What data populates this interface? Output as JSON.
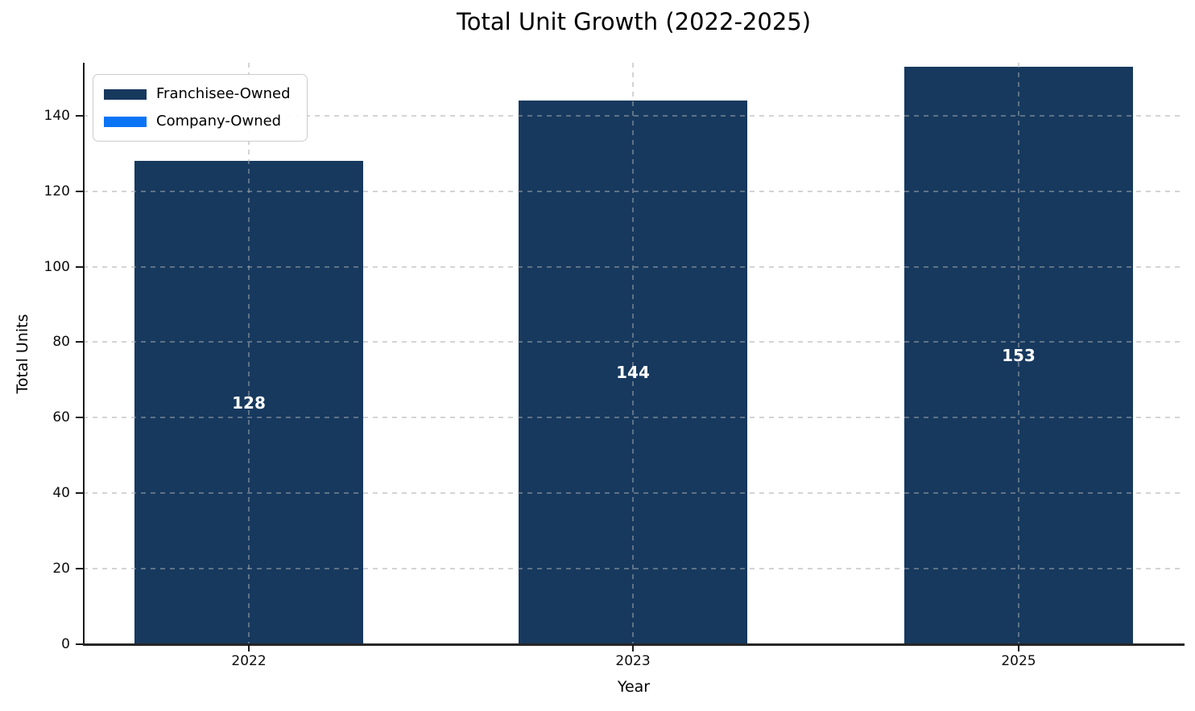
{
  "chart_data": {
    "type": "bar",
    "stacked": true,
    "title": "Total Unit Growth (2022-2025)",
    "xlabel": "Year",
    "ylabel": "Total Units",
    "categories": [
      "2022",
      "2023",
      "2025"
    ],
    "series": [
      {
        "name": "Franchisee-Owned",
        "color": "#17395E",
        "values": [
          128,
          144,
          153
        ]
      },
      {
        "name": "Company-Owned",
        "color": "#0B74F5",
        "values": [
          0,
          0,
          0
        ]
      }
    ],
    "totals": [
      128,
      144,
      153
    ],
    "bar_value_labels": [
      "128",
      "144",
      "153"
    ],
    "yticks": [
      0,
      20,
      40,
      60,
      80,
      100,
      120,
      140
    ],
    "ylim": [
      0,
      154
    ],
    "grid": true,
    "grid_style": "dashed",
    "legend_position": "upper left"
  },
  "colors": {
    "bar_label_text": "#ffffff",
    "grid": "#c8cccf",
    "spine": "#262626",
    "legend_border": "#cccccc",
    "background": "#ffffff"
  }
}
